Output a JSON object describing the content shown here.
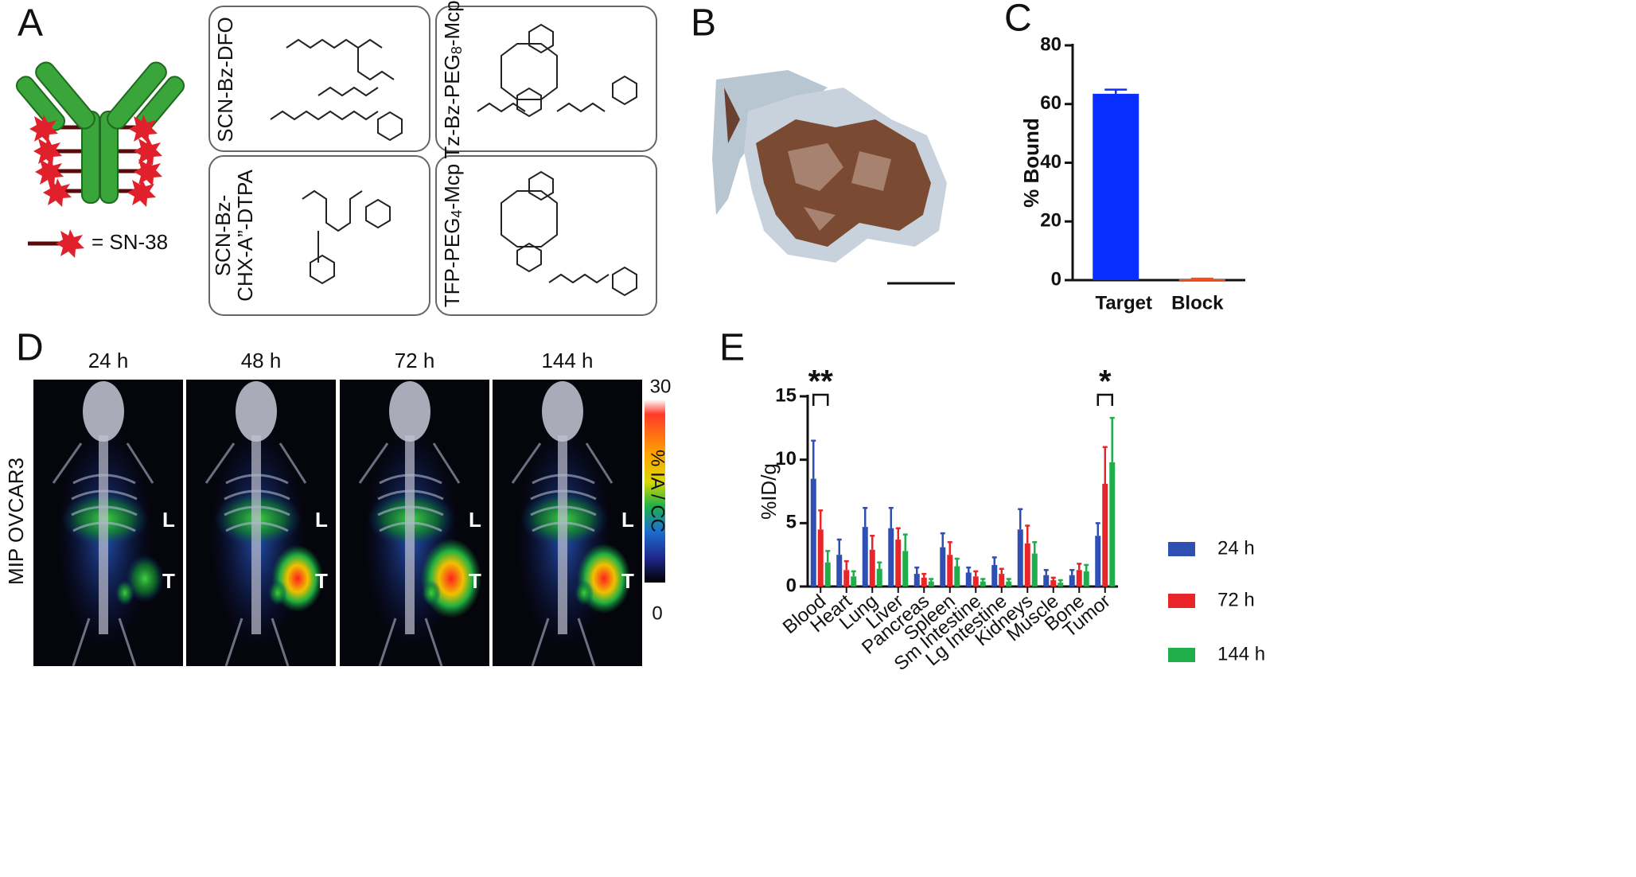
{
  "panel_a": {
    "letter": "A",
    "legend": "= SN-38",
    "boxes": [
      {
        "lines": [
          [
            "SCN-Bz-DFO"
          ]
        ]
      },
      {
        "lines": [
          [
            "Tz-Bz-PEG",
            "8",
            "-Mcp"
          ]
        ]
      },
      {
        "lines": [
          [
            "SCN-Bz-"
          ],
          [
            "CHX-A”-DTPA"
          ]
        ]
      },
      {
        "lines": [
          [
            "TFP-PEG",
            "4",
            "-Mcp"
          ]
        ]
      }
    ]
  },
  "panel_b": {
    "letter": "B"
  },
  "panel_d": {
    "letter": "D",
    "side_label": "MIP OVCAR3",
    "timepoints": [
      "24 h",
      "48 h",
      "72 h",
      "144 h"
    ],
    "left_marker": "L",
    "tumor_marker": "T",
    "colorbar_label": "% IA / CC",
    "colorbar_max": "30",
    "colorbar_min": "0"
  },
  "chart_data": [
    {
      "type": "bar",
      "letter": "C",
      "ylabel": "% Bound",
      "categories": [
        "Target",
        "Block"
      ],
      "values": [
        63.5,
        0.3
      ],
      "errors": [
        1.4,
        0.2
      ],
      "colors": [
        "#0a2eff",
        "#ff4a1f"
      ],
      "ylim": [
        0,
        80
      ],
      "yticks": [
        0,
        20,
        40,
        60,
        80
      ]
    },
    {
      "type": "grouped_bar",
      "letter": "E",
      "ylabel": "%ID/g",
      "categories": [
        "Blood",
        "Heart",
        "Lung",
        "Liver",
        "Pancreas",
        "Spleen",
        "Sm Intestine",
        "Lg Intestine",
        "Kidneys",
        "Muscle",
        "Bone",
        "Tumor"
      ],
      "series": [
        {
          "name": "24 h",
          "color": "#2f4fb3",
          "values": [
            8.5,
            2.5,
            4.7,
            4.6,
            1.0,
            3.1,
            1.1,
            1.7,
            4.5,
            0.9,
            0.9,
            4.0
          ],
          "errors": [
            3.0,
            1.2,
            1.5,
            1.6,
            0.5,
            1.1,
            0.4,
            0.6,
            1.6,
            0.4,
            0.4,
            1.0
          ]
        },
        {
          "name": "72 h",
          "color": "#e8262a",
          "values": [
            4.5,
            1.3,
            2.9,
            3.7,
            0.7,
            2.5,
            0.8,
            1.0,
            3.4,
            0.5,
            1.3,
            8.1
          ],
          "errors": [
            1.5,
            0.7,
            1.1,
            0.9,
            0.3,
            1.0,
            0.4,
            0.4,
            1.4,
            0.2,
            0.5,
            2.9
          ]
        },
        {
          "name": "144 h",
          "color": "#1fae4a",
          "values": [
            1.9,
            0.8,
            1.4,
            2.8,
            0.4,
            1.6,
            0.4,
            0.4,
            2.6,
            0.3,
            1.2,
            9.8
          ],
          "errors": [
            0.9,
            0.4,
            0.5,
            1.3,
            0.2,
            0.6,
            0.2,
            0.2,
            0.9,
            0.2,
            0.5,
            3.5
          ]
        }
      ],
      "annotations": [
        "**",
        "*"
      ],
      "ylim": [
        0,
        15
      ],
      "yticks": [
        0,
        5,
        10,
        15
      ]
    }
  ]
}
